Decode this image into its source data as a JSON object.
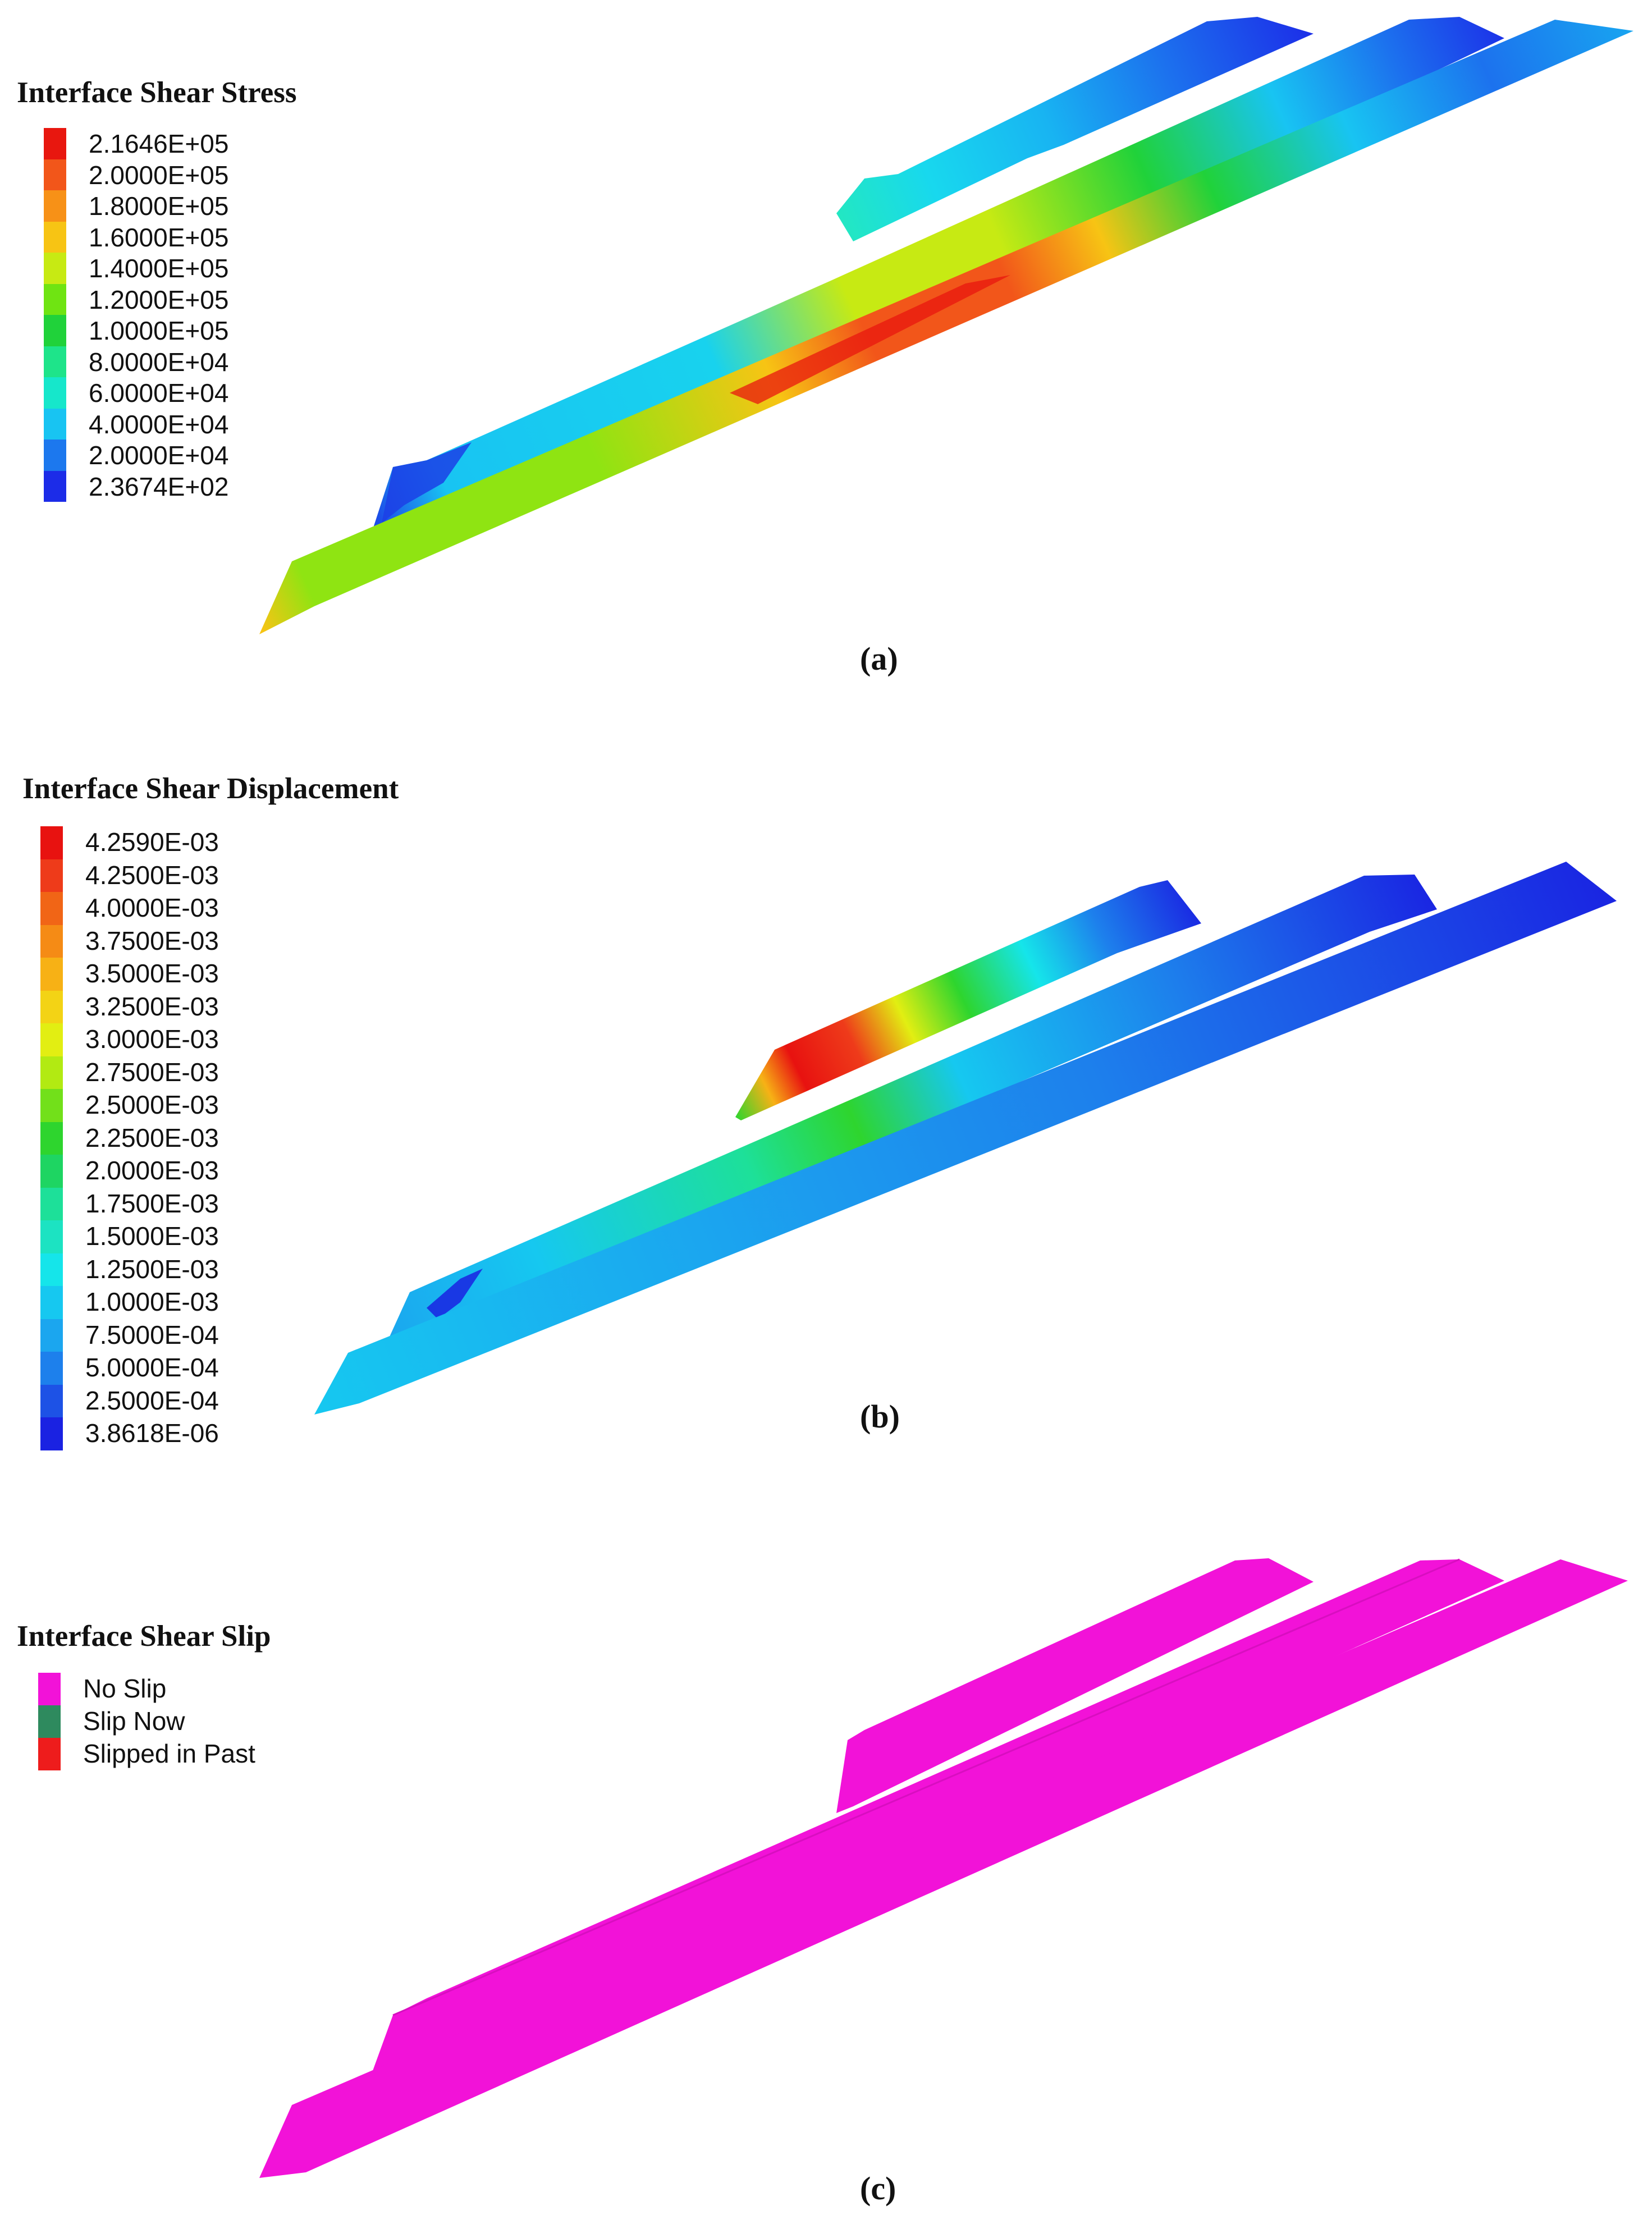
{
  "panels": {
    "a": {
      "caption": "(a)",
      "legend_title": "Interface Shear Stress",
      "legend": [
        {
          "label": "2.1646E+05",
          "color": "#e8170f"
        },
        {
          "label": "2.0000E+05",
          "color": "#f2561a"
        },
        {
          "label": "1.8000E+05",
          "color": "#f79117"
        },
        {
          "label": "1.6000E+05",
          "color": "#f7c414"
        },
        {
          "label": "1.4000E+05",
          "color": "#c7ea13"
        },
        {
          "label": "1.2000E+05",
          "color": "#6fe412"
        },
        {
          "label": "1.0000E+05",
          "color": "#20d23a"
        },
        {
          "label": "8.0000E+04",
          "color": "#1ee48a"
        },
        {
          "label": "6.0000E+04",
          "color": "#16e7cb"
        },
        {
          "label": "4.0000E+04",
          "color": "#18c4f2"
        },
        {
          "label": "2.0000E+04",
          "color": "#1c78ee"
        },
        {
          "label": "2.3674E+02",
          "color": "#1c2ce8"
        }
      ]
    },
    "b": {
      "caption": "(b)",
      "legend_title": "Interface Shear Displacement",
      "legend": [
        {
          "label": "4.2590E-03",
          "color": "#e81210"
        },
        {
          "label": "4.2500E-03",
          "color": "#ee3b1a"
        },
        {
          "label": "4.0000E-03",
          "color": "#f16516"
        },
        {
          "label": "3.7500E-03",
          "color": "#f58b15"
        },
        {
          "label": "3.5000E-03",
          "color": "#f7b115"
        },
        {
          "label": "3.2500E-03",
          "color": "#f3d315"
        },
        {
          "label": "3.0000E-03",
          "color": "#e2ee12"
        },
        {
          "label": "2.7500E-03",
          "color": "#b2ea12"
        },
        {
          "label": "2.5000E-03",
          "color": "#72e01a"
        },
        {
          "label": "2.2500E-03",
          "color": "#2ed52e"
        },
        {
          "label": "2.0000E-03",
          "color": "#1ed562"
        },
        {
          "label": "1.7500E-03",
          "color": "#1de099"
        },
        {
          "label": "1.5000E-03",
          "color": "#1ce3c2"
        },
        {
          "label": "1.2500E-03",
          "color": "#15e5ea"
        },
        {
          "label": "1.0000E-03",
          "color": "#16c8f0"
        },
        {
          "label": "7.5000E-04",
          "color": "#1ba6ef"
        },
        {
          "label": "5.0000E-04",
          "color": "#1d80ec"
        },
        {
          "label": "2.5000E-04",
          "color": "#1d52e6"
        },
        {
          "label": "3.8618E-06",
          "color": "#1a22e2"
        }
      ]
    },
    "c": {
      "caption": "(c)",
      "legend_title": "Interface Shear Slip",
      "legend": [
        {
          "label": "No Slip",
          "color": "#f212d8"
        },
        {
          "label": "Slip Now",
          "color": "#2e8a5e"
        },
        {
          "label": "Slipped in Past",
          "color": "#ee1c1c"
        }
      ]
    }
  }
}
